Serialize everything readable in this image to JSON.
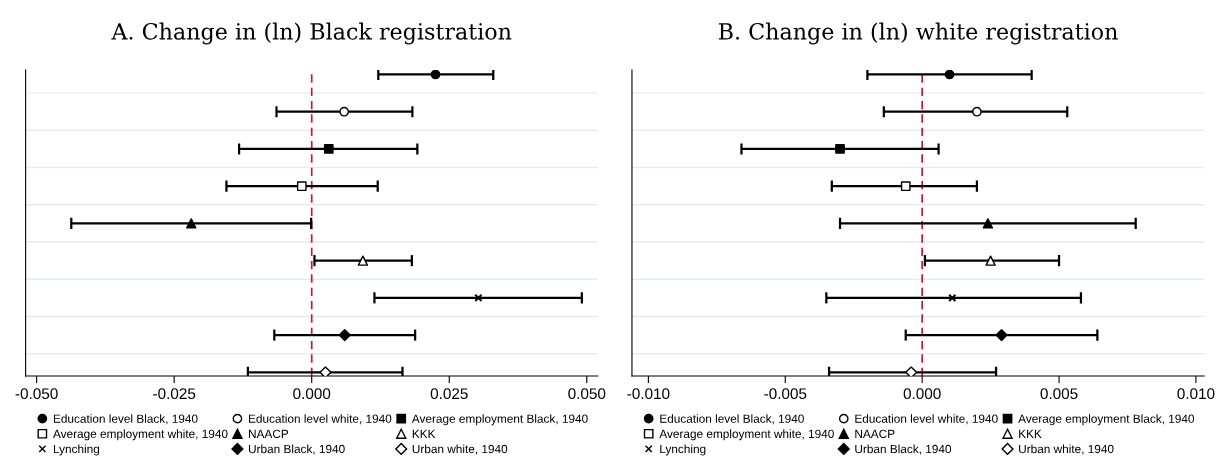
{
  "chart_data": [
    {
      "type": "scatter",
      "orientation": "horizontal",
      "title": "A. Change in (ln) Black registration",
      "categories": [
        null,
        null,
        null,
        null,
        null,
        null,
        null,
        null,
        null
      ],
      "xlim": [
        -0.052,
        0.052
      ],
      "xticks": [
        {
          "value": -0.05,
          "label": "-0.050"
        },
        {
          "value": -0.025,
          "label": "-0.025"
        },
        {
          "value": 0,
          "label": "0.000"
        },
        {
          "value": 0.025,
          "label": "0.025"
        },
        {
          "value": 0.05,
          "label": "0.050"
        }
      ],
      "grid": "y",
      "legend": "bottom",
      "tick_labels": "x",
      "ref_lines": [
        {
          "axis": "x",
          "value": 0,
          "color": "#d0103a",
          "line_style": "dashed"
        }
      ],
      "series": [
        {
          "name": "Education level Black, 1940",
          "color": "#000000",
          "marker": "circle",
          "values": [
            0.0225,
            null,
            null,
            null,
            null,
            null,
            null,
            null,
            null
          ],
          "errors": [
            [
              0.0121,
              0.033
            ],
            null,
            null,
            null,
            null,
            null,
            null,
            null,
            null
          ]
        },
        {
          "name": "Education level white, 1940",
          "color": "#000000",
          "marker": "circle",
          "values": [
            null,
            0.0059,
            null,
            null,
            null,
            null,
            null,
            null,
            null
          ],
          "errors": [
            null,
            [
              -0.0064,
              0.0183
            ],
            null,
            null,
            null,
            null,
            null,
            null,
            null
          ]
        },
        {
          "name": "Average employment Black, 1940",
          "color": "#000000",
          "marker": "square",
          "values": [
            null,
            null,
            0.0031,
            null,
            null,
            null,
            null,
            null,
            null
          ],
          "errors": [
            null,
            null,
            [
              -0.0132,
              0.0192
            ],
            null,
            null,
            null,
            null,
            null,
            null
          ]
        },
        {
          "name": "Average employment white, 1940",
          "color": "#000000",
          "marker": "square",
          "values": [
            null,
            null,
            null,
            -0.0018,
            null,
            null,
            null,
            null,
            null
          ],
          "errors": [
            null,
            null,
            null,
            [
              -0.0155,
              0.012
            ],
            null,
            null,
            null,
            null,
            null
          ]
        },
        {
          "name": "NAACP",
          "color": "#000000",
          "marker": "triangle",
          "values": [
            null,
            null,
            null,
            null,
            -0.0219,
            null,
            null,
            null,
            null
          ],
          "errors": [
            null,
            null,
            null,
            null,
            [
              -0.0437,
              -0.0001
            ],
            null,
            null,
            null,
            null
          ]
        },
        {
          "name": "KKK",
          "color": "#000000",
          "marker": "triangle",
          "values": [
            null,
            null,
            null,
            null,
            null,
            0.0093,
            null,
            null,
            null
          ],
          "errors": [
            null,
            null,
            null,
            null,
            null,
            [
              0.0005,
              0.0182
            ],
            null,
            null,
            null
          ]
        },
        {
          "name": "Lynching",
          "color": "#000000",
          "marker": "cross",
          "values": [
            null,
            null,
            null,
            null,
            null,
            null,
            0.0303,
            null,
            null
          ],
          "errors": [
            null,
            null,
            null,
            null,
            null,
            null,
            [
              0.0114,
              0.0491
            ],
            null,
            null
          ]
        },
        {
          "name": "Urban Black, 1940",
          "color": "#000000",
          "marker": "diamond",
          "values": [
            null,
            null,
            null,
            null,
            null,
            null,
            null,
            0.006,
            null
          ],
          "errors": [
            null,
            null,
            null,
            null,
            null,
            null,
            null,
            [
              -0.0068,
              0.0188
            ],
            null
          ]
        },
        {
          "name": "Urban white, 1940",
          "color": "#000000",
          "marker": "diamond",
          "values": [
            null,
            null,
            null,
            null,
            null,
            null,
            null,
            null,
            0.0025
          ],
          "errors": [
            null,
            null,
            null,
            null,
            null,
            null,
            null,
            null,
            [
              -0.0116,
              0.0165
            ]
          ]
        }
      ]
    },
    {
      "type": "scatter",
      "orientation": "horizontal",
      "title": "B. Change in (ln) white registration",
      "categories": [
        null,
        null,
        null,
        null,
        null,
        null,
        null,
        null,
        null
      ],
      "xlim": [
        -0.0106,
        0.0103
      ],
      "xticks": [
        {
          "value": -0.01,
          "label": "-0.010"
        },
        {
          "value": -0.005,
          "label": "-0.005"
        },
        {
          "value": 0,
          "label": "0.000"
        },
        {
          "value": 0.005,
          "label": "0.005"
        },
        {
          "value": 0.01,
          "label": "0.010"
        }
      ],
      "grid": "y",
      "legend": "bottom",
      "tick_labels": "x",
      "ref_lines": [
        {
          "axis": "x",
          "value": 0,
          "color": "#d0103a",
          "line_style": "dashed"
        }
      ],
      "series": [
        {
          "name": "Education level Black, 1940",
          "color": "#000000",
          "marker": "circle",
          "values": [
            0.001,
            null,
            null,
            null,
            null,
            null,
            null,
            null,
            null
          ],
          "errors": [
            [
              -0.002,
              0.004
            ],
            null,
            null,
            null,
            null,
            null,
            null,
            null,
            null
          ]
        },
        {
          "name": "Education level white, 1940",
          "color": "#000000",
          "marker": "circle",
          "values": [
            null,
            0.002,
            null,
            null,
            null,
            null,
            null,
            null,
            null
          ],
          "errors": [
            null,
            [
              -0.0014,
              0.0053
            ],
            null,
            null,
            null,
            null,
            null,
            null,
            null
          ]
        },
        {
          "name": "Average employment Black, 1940",
          "color": "#000000",
          "marker": "square",
          "values": [
            null,
            null,
            -0.003,
            null,
            null,
            null,
            null,
            null,
            null
          ],
          "errors": [
            null,
            null,
            [
              -0.0066,
              0.0006
            ],
            null,
            null,
            null,
            null,
            null,
            null
          ]
        },
        {
          "name": "Average employment white, 1940",
          "color": "#000000",
          "marker": "square",
          "values": [
            null,
            null,
            null,
            -0.0006,
            null,
            null,
            null,
            null,
            null
          ],
          "errors": [
            null,
            null,
            null,
            [
              -0.0033,
              0.002
            ],
            null,
            null,
            null,
            null,
            null
          ]
        },
        {
          "name": "NAACP",
          "color": "#000000",
          "marker": "triangle",
          "values": [
            null,
            null,
            null,
            null,
            0.0024,
            null,
            null,
            null,
            null
          ],
          "errors": [
            null,
            null,
            null,
            null,
            [
              -0.003,
              0.0078
            ],
            null,
            null,
            null,
            null
          ]
        },
        {
          "name": "KKK",
          "color": "#000000",
          "marker": "triangle",
          "values": [
            null,
            null,
            null,
            null,
            null,
            0.0025,
            null,
            null,
            null
          ],
          "errors": [
            null,
            null,
            null,
            null,
            null,
            [
              0.0001,
              0.005
            ],
            null,
            null,
            null
          ]
        },
        {
          "name": "Lynching",
          "color": "#000000",
          "marker": "cross",
          "values": [
            null,
            null,
            null,
            null,
            null,
            null,
            0.0011,
            null,
            null
          ],
          "errors": [
            null,
            null,
            null,
            null,
            null,
            null,
            [
              -0.0035,
              0.0058
            ],
            null,
            null
          ]
        },
        {
          "name": "Urban Black, 1940",
          "color": "#000000",
          "marker": "diamond",
          "values": [
            null,
            null,
            null,
            null,
            null,
            null,
            null,
            0.0029,
            null
          ],
          "errors": [
            null,
            null,
            null,
            null,
            null,
            null,
            null,
            [
              -0.0006,
              0.0064
            ],
            null
          ]
        },
        {
          "name": "Urban white, 1940",
          "color": "#000000",
          "marker": "diamond",
          "values": [
            null,
            null,
            null,
            null,
            null,
            null,
            null,
            null,
            -0.0004
          ],
          "errors": [
            null,
            null,
            null,
            null,
            null,
            null,
            null,
            null,
            [
              -0.0034,
              0.0027
            ]
          ]
        }
      ]
    }
  ]
}
